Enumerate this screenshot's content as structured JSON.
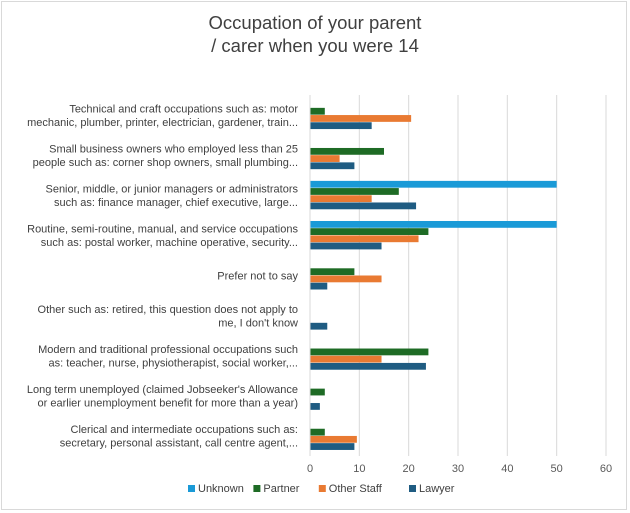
{
  "chart_data": {
    "type": "bar",
    "orientation": "horizontal",
    "title_lines": [
      "Occupation of your parent",
      "/ carer when you were 14"
    ],
    "categories": [
      [
        "Technical and craft occupations such as: motor",
        "mechanic, plumber, printer, electrician, gardener, train..."
      ],
      [
        "Small business owners who employed less than 25",
        "people such as: corner shop owners, small plumbing..."
      ],
      [
        "Senior, middle, or junior managers or administrators",
        "such as: finance manager, chief executive, large..."
      ],
      [
        "Routine, semi-routine, manual, and service occupations",
        "such as: postal worker, machine operative, security..."
      ],
      [
        "Prefer not to say"
      ],
      [
        "Other such as: retired, this question does not apply to",
        "me, I don't know"
      ],
      [
        "Modern and traditional professional occupations such",
        "as: teacher, nurse, physiotherapist, social worker,..."
      ],
      [
        "Long term unemployed (claimed Jobseeker's Allowance",
        "or earlier unemployment benefit for more than a year)"
      ],
      [
        "Clerical and intermediate occupations such as:",
        "secretary, personal assistant, call centre agent,..."
      ]
    ],
    "series": [
      {
        "name": "Unknown",
        "color": "#1a9ad7",
        "values": [
          0,
          0,
          50,
          50,
          0,
          0,
          0,
          0,
          0
        ]
      },
      {
        "name": "Partner",
        "color": "#1e6b25",
        "values": [
          3,
          15,
          18,
          24,
          9,
          0,
          24,
          3,
          3
        ]
      },
      {
        "name": "Other Staff",
        "color": "#e97a32",
        "values": [
          20.5,
          6,
          12.5,
          22,
          14.5,
          0,
          14.5,
          0,
          9.5
        ]
      },
      {
        "name": "Lawyer",
        "color": "#1f5c82",
        "values": [
          12.5,
          9,
          21.5,
          14.5,
          3.5,
          3.5,
          23.5,
          2,
          9
        ]
      }
    ],
    "xlim": [
      0,
      60
    ],
    "xticks": [
      "0",
      "10",
      "20",
      "30",
      "40",
      "50",
      "60"
    ],
    "grid": true,
    "legend_position": "bottom",
    "gridline_color": "#d9d9d9",
    "text_color": "#404040"
  }
}
